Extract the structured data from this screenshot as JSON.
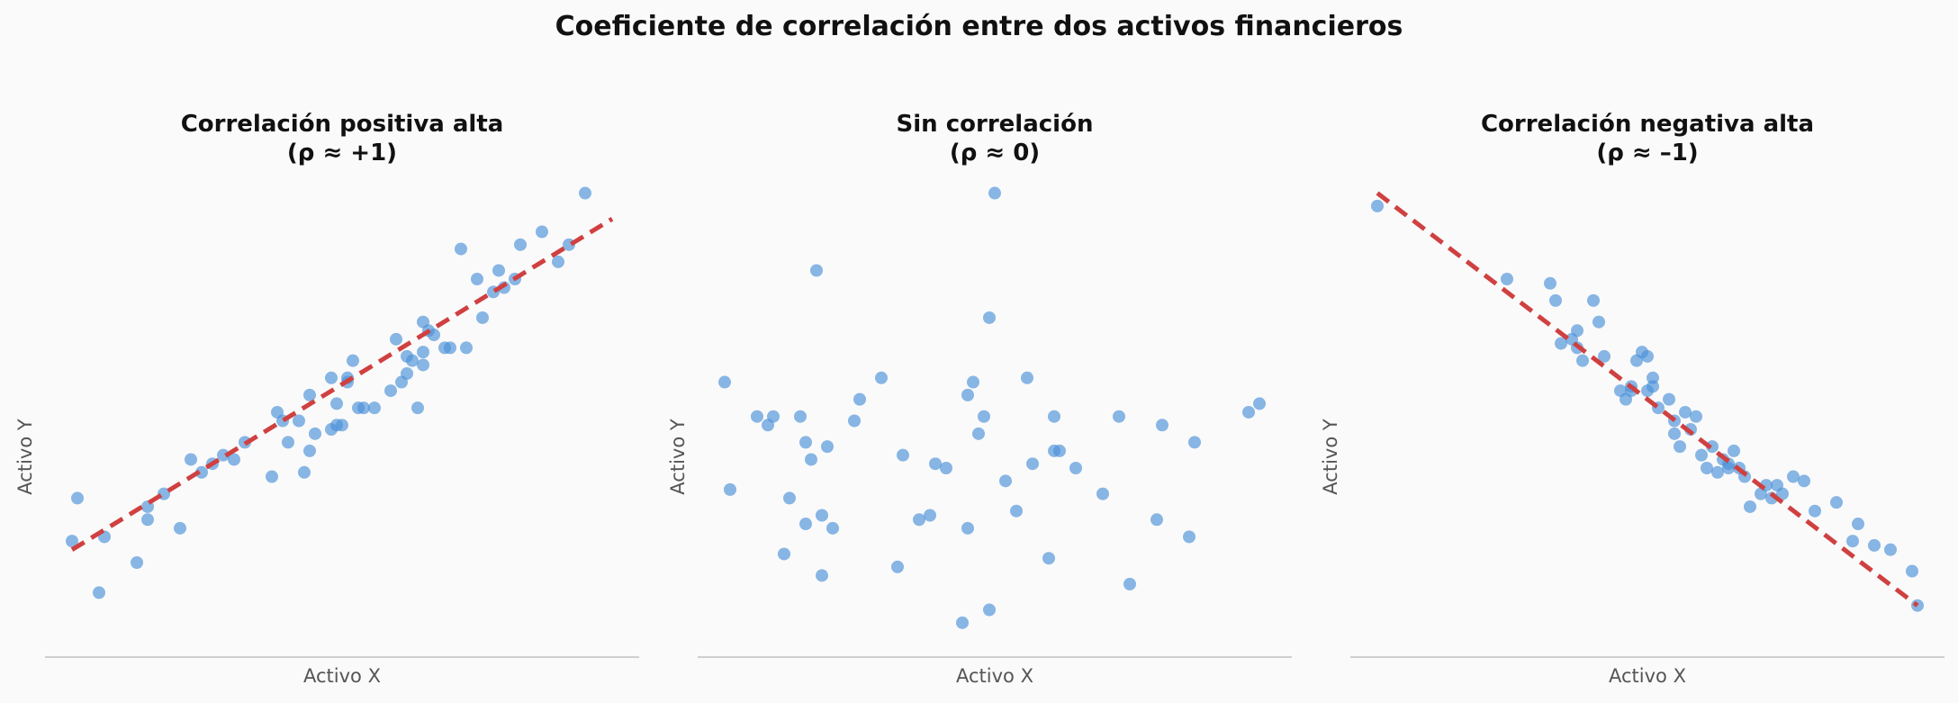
{
  "suptitle": "Coeficiente de correlación entre dos activos financieros",
  "colors": {
    "points": "#4a90d9",
    "fit_line": "#d04040",
    "background": "#fafafa",
    "axis": "#cfcfcf"
  },
  "chart_data": [
    {
      "type": "scatter",
      "title": [
        "Correlación positiva alta",
        "(ρ ≈ +1)"
      ],
      "xlabel": "Activo X",
      "ylabel": "Activo Y",
      "grid": false,
      "xlim": [
        -0.05,
        1.05
      ],
      "ylim": [
        -0.08,
        1.02
      ],
      "fit_line": {
        "x": [
          0,
          1
        ],
        "y": [
          0.17,
          0.94
        ]
      },
      "points": {
        "x": [
          0.0,
          0.01,
          0.05,
          0.06,
          0.12,
          0.14,
          0.14,
          0.17,
          0.2,
          0.22,
          0.24,
          0.26,
          0.28,
          0.3,
          0.32,
          0.37,
          0.38,
          0.39,
          0.4,
          0.42,
          0.43,
          0.44,
          0.44,
          0.45,
          0.48,
          0.48,
          0.49,
          0.49,
          0.5,
          0.51,
          0.51,
          0.52,
          0.53,
          0.54,
          0.56,
          0.59,
          0.6,
          0.61,
          0.62,
          0.62,
          0.63,
          0.64,
          0.65,
          0.65,
          0.65,
          0.66,
          0.67,
          0.69,
          0.7,
          0.72,
          0.73,
          0.75,
          0.76,
          0.78,
          0.79,
          0.8,
          0.82,
          0.83,
          0.87,
          0.9,
          0.92,
          0.95
        ],
        "y": [
          0.19,
          0.29,
          0.07,
          0.2,
          0.14,
          0.27,
          0.24,
          0.3,
          0.22,
          0.38,
          0.35,
          0.37,
          0.39,
          0.38,
          0.42,
          0.34,
          0.49,
          0.47,
          0.42,
          0.47,
          0.35,
          0.53,
          0.4,
          0.44,
          0.45,
          0.57,
          0.46,
          0.51,
          0.46,
          0.57,
          0.56,
          0.61,
          0.5,
          0.5,
          0.5,
          0.54,
          0.66,
          0.56,
          0.58,
          0.62,
          0.61,
          0.5,
          0.63,
          0.6,
          0.7,
          0.68,
          0.67,
          0.64,
          0.64,
          0.87,
          0.64,
          0.8,
          0.71,
          0.77,
          0.82,
          0.78,
          0.8,
          0.88,
          0.91,
          0.84,
          0.88,
          1.0
        ]
      }
    },
    {
      "type": "scatter",
      "title": [
        "Sin correlación",
        "(ρ ≈ 0)"
      ],
      "xlabel": "Activo X",
      "ylabel": "Activo Y",
      "grid": false,
      "xlim": [
        -0.05,
        1.05
      ],
      "ylim": [
        -0.08,
        1.02
      ],
      "points": {
        "x": [
          0.0,
          0.01,
          0.06,
          0.08,
          0.09,
          0.11,
          0.12,
          0.14,
          0.15,
          0.15,
          0.16,
          0.17,
          0.18,
          0.18,
          0.19,
          0.2,
          0.24,
          0.25,
          0.29,
          0.32,
          0.33,
          0.36,
          0.38,
          0.39,
          0.41,
          0.44,
          0.45,
          0.45,
          0.46,
          0.47,
          0.48,
          0.49,
          0.49,
          0.5,
          0.52,
          0.54,
          0.56,
          0.57,
          0.6,
          0.61,
          0.61,
          0.62,
          0.65,
          0.7,
          0.73,
          0.75,
          0.8,
          0.81,
          0.86,
          0.87,
          0.97,
          0.99
        ],
        "y": [
          0.56,
          0.31,
          0.48,
          0.46,
          0.48,
          0.16,
          0.29,
          0.48,
          0.42,
          0.23,
          0.38,
          0.82,
          0.25,
          0.11,
          0.41,
          0.22,
          0.47,
          0.52,
          0.57,
          0.13,
          0.39,
          0.24,
          0.25,
          0.37,
          0.36,
          0.0,
          0.53,
          0.22,
          0.56,
          0.44,
          0.48,
          0.03,
          0.71,
          1.0,
          0.33,
          0.26,
          0.57,
          0.37,
          0.15,
          0.48,
          0.4,
          0.4,
          0.36,
          0.3,
          0.48,
          0.09,
          0.24,
          0.46,
          0.2,
          0.42,
          0.49,
          0.51
        ]
      }
    },
    {
      "type": "scatter",
      "title": [
        "Correlación negativa alta",
        "(ρ ≈ –1)"
      ],
      "xlabel": "Activo X",
      "ylabel": "Activo Y",
      "grid": false,
      "xlim": [
        -0.05,
        1.05
      ],
      "ylim": [
        -0.08,
        1.02
      ],
      "fit_line": {
        "x": [
          0,
          1
        ],
        "y": [
          1.0,
          0.04
        ]
      },
      "points": {
        "x": [
          0.0,
          0.24,
          0.32,
          0.33,
          0.34,
          0.36,
          0.37,
          0.37,
          0.38,
          0.4,
          0.41,
          0.42,
          0.45,
          0.46,
          0.47,
          0.47,
          0.48,
          0.49,
          0.5,
          0.5,
          0.51,
          0.51,
          0.52,
          0.54,
          0.55,
          0.55,
          0.56,
          0.57,
          0.58,
          0.59,
          0.6,
          0.61,
          0.62,
          0.63,
          0.64,
          0.65,
          0.65,
          0.66,
          0.67,
          0.68,
          0.69,
          0.71,
          0.72,
          0.73,
          0.74,
          0.75,
          0.77,
          0.79,
          0.81,
          0.85,
          0.88,
          0.89,
          0.92,
          0.95,
          0.99,
          1.0
        ],
        "y": [
          0.97,
          0.8,
          0.79,
          0.75,
          0.65,
          0.66,
          0.64,
          0.68,
          0.61,
          0.75,
          0.7,
          0.62,
          0.54,
          0.52,
          0.54,
          0.55,
          0.61,
          0.63,
          0.62,
          0.54,
          0.57,
          0.55,
          0.5,
          0.52,
          0.44,
          0.47,
          0.41,
          0.49,
          0.45,
          0.48,
          0.39,
          0.36,
          0.41,
          0.35,
          0.38,
          0.37,
          0.36,
          0.4,
          0.36,
          0.34,
          0.27,
          0.3,
          0.32,
          0.29,
          0.32,
          0.3,
          0.34,
          0.33,
          0.26,
          0.28,
          0.19,
          0.23,
          0.18,
          0.17,
          0.12,
          0.04
        ]
      }
    }
  ]
}
